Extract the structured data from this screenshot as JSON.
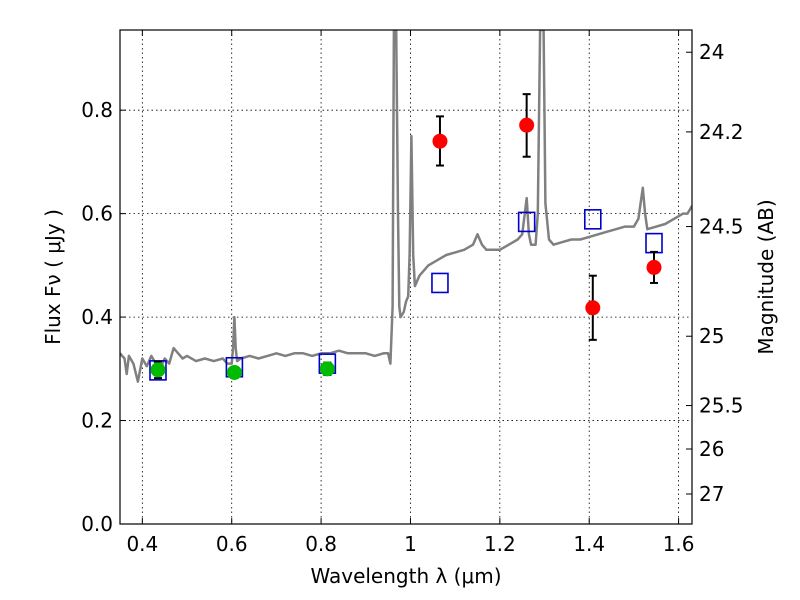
{
  "chart_data": {
    "type": "scatter",
    "xlabel": "Wavelength  λ (μm)",
    "ylabel": "Flux  Fν  ( μJy )",
    "ylabel_right": "Magnitude (AB)",
    "xlim": [
      0.35,
      1.63
    ],
    "ylim": [
      0.0,
      0.955
    ],
    "grid": true,
    "x_ticks": [
      {
        "value": 0.4,
        "label": "0.4"
      },
      {
        "value": 0.6,
        "label": "0.6"
      },
      {
        "value": 0.8,
        "label": "0.8"
      },
      {
        "value": 1.0,
        "label": "1"
      },
      {
        "value": 1.2,
        "label": "1.2"
      },
      {
        "value": 1.4,
        "label": "1.4"
      },
      {
        "value": 1.6,
        "label": "1.6"
      }
    ],
    "y_ticks": [
      {
        "value": 0.0,
        "label": "0.0"
      },
      {
        "value": 0.2,
        "label": "0.2"
      },
      {
        "value": 0.4,
        "label": "0.4"
      },
      {
        "value": 0.6,
        "label": "0.6"
      },
      {
        "value": 0.8,
        "label": "0.8"
      }
    ],
    "right_ticks": [
      {
        "label": "24",
        "flux": 0.912
      },
      {
        "label": "24.2",
        "flux": 0.758
      },
      {
        "label": "24.5",
        "flux": 0.575
      },
      {
        "label": "25",
        "flux": 0.363
      },
      {
        "label": "25.5",
        "flux": 0.229
      },
      {
        "label": "26",
        "flux": 0.145
      },
      {
        "label": "27",
        "flux": 0.058
      }
    ],
    "series": [
      {
        "marker": "circle",
        "color": "#ff0000",
        "points": [
          {
            "x": 1.066,
            "y": 0.74,
            "ylow": 0.693,
            "yhigh": 0.788
          },
          {
            "x": 1.26,
            "y": 0.771,
            "ylow": 0.71,
            "yhigh": 0.831
          },
          {
            "x": 1.408,
            "y": 0.418,
            "ylow": 0.356,
            "yhigh": 0.48
          },
          {
            "x": 1.545,
            "y": 0.496,
            "ylow": 0.466,
            "yhigh": 0.526
          }
        ]
      },
      {
        "marker": "circle",
        "color": "#00bb00",
        "points": [
          {
            "x": 0.435,
            "y": 0.298,
            "ylow": 0.282,
            "yhigh": 0.314
          },
          {
            "x": 0.606,
            "y": 0.293,
            "ylow": 0.283,
            "yhigh": 0.303
          },
          {
            "x": 0.814,
            "y": 0.3,
            "ylow": 0.288,
            "yhigh": 0.312
          }
        ]
      },
      {
        "marker": "open-square",
        "color": "#0000cc",
        "points": [
          {
            "x": 0.435,
            "y": 0.297
          },
          {
            "x": 0.606,
            "y": 0.303
          },
          {
            "x": 0.814,
            "y": 0.31
          },
          {
            "x": 1.066,
            "y": 0.466
          },
          {
            "x": 1.26,
            "y": 0.584
          },
          {
            "x": 1.408,
            "y": 0.589
          },
          {
            "x": 1.545,
            "y": 0.543
          }
        ]
      }
    ],
    "spectrum": {
      "color": "#808080",
      "points": [
        [
          0.35,
          0.33
        ],
        [
          0.36,
          0.32
        ],
        [
          0.365,
          0.29
        ],
        [
          0.37,
          0.325
        ],
        [
          0.38,
          0.31
        ],
        [
          0.39,
          0.275
        ],
        [
          0.4,
          0.32
        ],
        [
          0.41,
          0.305
        ],
        [
          0.42,
          0.325
        ],
        [
          0.43,
          0.31
        ],
        [
          0.44,
          0.3
        ],
        [
          0.45,
          0.32
        ],
        [
          0.46,
          0.31
        ],
        [
          0.47,
          0.34
        ],
        [
          0.48,
          0.33
        ],
        [
          0.49,
          0.32
        ],
        [
          0.5,
          0.325
        ],
        [
          0.52,
          0.315
        ],
        [
          0.54,
          0.32
        ],
        [
          0.56,
          0.315
        ],
        [
          0.58,
          0.32
        ],
        [
          0.59,
          0.31
        ],
        [
          0.6,
          0.31
        ],
        [
          0.603,
          0.34
        ],
        [
          0.606,
          0.4
        ],
        [
          0.609,
          0.34
        ],
        [
          0.612,
          0.315
        ],
        [
          0.62,
          0.32
        ],
        [
          0.64,
          0.325
        ],
        [
          0.66,
          0.32
        ],
        [
          0.68,
          0.325
        ],
        [
          0.7,
          0.33
        ],
        [
          0.72,
          0.325
        ],
        [
          0.74,
          0.33
        ],
        [
          0.76,
          0.33
        ],
        [
          0.78,
          0.325
        ],
        [
          0.8,
          0.33
        ],
        [
          0.82,
          0.33
        ],
        [
          0.84,
          0.335
        ],
        [
          0.86,
          0.33
        ],
        [
          0.88,
          0.33
        ],
        [
          0.9,
          0.33
        ],
        [
          0.92,
          0.325
        ],
        [
          0.94,
          0.33
        ],
        [
          0.95,
          0.33
        ],
        [
          0.955,
          0.31
        ],
        [
          0.96,
          0.42
        ],
        [
          0.963,
          0.955
        ],
        [
          0.968,
          0.955
        ],
        [
          0.972,
          0.6
        ],
        [
          0.975,
          0.42
        ],
        [
          0.978,
          0.4
        ],
        [
          0.985,
          0.41
        ],
        [
          0.99,
          0.43
        ],
        [
          0.995,
          0.44
        ],
        [
          0.998,
          0.52
        ],
        [
          1.002,
          0.75
        ],
        [
          1.006,
          0.52
        ],
        [
          1.01,
          0.46
        ],
        [
          1.02,
          0.48
        ],
        [
          1.04,
          0.5
        ],
        [
          1.06,
          0.51
        ],
        [
          1.08,
          0.52
        ],
        [
          1.1,
          0.525
        ],
        [
          1.12,
          0.53
        ],
        [
          1.14,
          0.54
        ],
        [
          1.15,
          0.56
        ],
        [
          1.16,
          0.54
        ],
        [
          1.17,
          0.53
        ],
        [
          1.18,
          0.53
        ],
        [
          1.2,
          0.53
        ],
        [
          1.22,
          0.54
        ],
        [
          1.24,
          0.55
        ],
        [
          1.25,
          0.56
        ],
        [
          1.26,
          0.63
        ],
        [
          1.265,
          0.56
        ],
        [
          1.27,
          0.54
        ],
        [
          1.28,
          0.54
        ],
        [
          1.285,
          0.6
        ],
        [
          1.29,
          0.955
        ],
        [
          1.298,
          0.955
        ],
        [
          1.302,
          0.62
        ],
        [
          1.31,
          0.55
        ],
        [
          1.32,
          0.54
        ],
        [
          1.34,
          0.545
        ],
        [
          1.36,
          0.55
        ],
        [
          1.38,
          0.55
        ],
        [
          1.4,
          0.555
        ],
        [
          1.42,
          0.56
        ],
        [
          1.44,
          0.565
        ],
        [
          1.46,
          0.57
        ],
        [
          1.48,
          0.575
        ],
        [
          1.5,
          0.575
        ],
        [
          1.51,
          0.59
        ],
        [
          1.515,
          0.62
        ],
        [
          1.52,
          0.65
        ],
        [
          1.525,
          0.6
        ],
        [
          1.53,
          0.57
        ],
        [
          1.55,
          0.575
        ],
        [
          1.57,
          0.58
        ],
        [
          1.59,
          0.59
        ],
        [
          1.61,
          0.6
        ],
        [
          1.62,
          0.6
        ],
        [
          1.63,
          0.615
        ]
      ]
    }
  }
}
